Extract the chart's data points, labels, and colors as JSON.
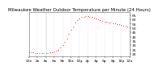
{
  "title": "Milwaukee Weather Outdoor Temperature per Minute (24 Hours)",
  "yticks": [
    20,
    25,
    30,
    35,
    40,
    45,
    50,
    55,
    60,
    65
  ],
  "ylim": [
    17,
    68
  ],
  "xlim": [
    0,
    1440
  ],
  "bg_color": "#ffffff",
  "line_color": "#ff0000",
  "vline_x": 240,
  "vline_color": "#888888",
  "temperature_profile": [
    [
      0,
      22
    ],
    [
      30,
      22
    ],
    [
      60,
      21.5
    ],
    [
      90,
      21.2
    ],
    [
      120,
      21
    ],
    [
      150,
      21
    ],
    [
      180,
      21
    ],
    [
      210,
      21
    ],
    [
      240,
      21
    ],
    [
      270,
      21
    ],
    [
      300,
      21.5
    ],
    [
      330,
      22
    ],
    [
      360,
      22.5
    ],
    [
      390,
      23.5
    ],
    [
      420,
      25
    ],
    [
      450,
      27
    ],
    [
      480,
      30
    ],
    [
      510,
      34
    ],
    [
      540,
      38
    ],
    [
      570,
      43
    ],
    [
      600,
      48
    ],
    [
      630,
      52
    ],
    [
      660,
      56
    ],
    [
      690,
      59
    ],
    [
      720,
      61
    ],
    [
      750,
      62.5
    ],
    [
      780,
      63
    ],
    [
      810,
      63.5
    ],
    [
      840,
      63.5
    ],
    [
      870,
      63
    ],
    [
      900,
      62.5
    ],
    [
      930,
      62
    ],
    [
      960,
      61
    ],
    [
      990,
      60
    ],
    [
      1020,
      59
    ],
    [
      1050,
      58
    ],
    [
      1080,
      57.5
    ],
    [
      1110,
      57
    ],
    [
      1140,
      56.5
    ],
    [
      1170,
      56
    ],
    [
      1200,
      55.5
    ],
    [
      1230,
      55
    ],
    [
      1260,
      54.5
    ],
    [
      1290,
      54
    ],
    [
      1320,
      53.5
    ],
    [
      1350,
      53
    ],
    [
      1380,
      52.5
    ],
    [
      1410,
      52
    ],
    [
      1440,
      51
    ]
  ],
  "xtick_labels": [
    "12a",
    "2a",
    "4a",
    "6a",
    "8a",
    "10a",
    "12p",
    "2p",
    "4p",
    "6p",
    "8p",
    "10p",
    "12a"
  ],
  "xtick_positions": [
    0,
    120,
    240,
    360,
    480,
    600,
    720,
    840,
    960,
    1080,
    1200,
    1320,
    1440
  ],
  "title_fontsize": 4.0,
  "tick_fontsize": 3.2,
  "left_yticks": [
    20,
    25,
    30,
    35,
    40,
    45,
    50,
    55,
    60,
    65
  ],
  "left_ylim": [
    17,
    68
  ]
}
